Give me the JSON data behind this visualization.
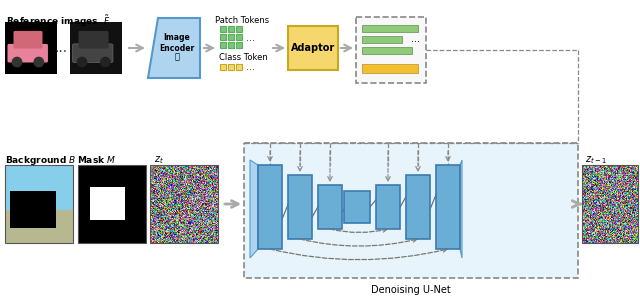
{
  "bg_color": "#ffffff",
  "ref_images_label": "Reference images  $\\tilde{F}$",
  "bg_label": "Background $B$",
  "mask_label": "Mask $M$",
  "zt_label": "$z_t$",
  "zt1_label": "$z_{t-1}$",
  "patch_tokens_label": "Patch Tokens",
  "class_token_label": "Class Token",
  "adaptor_label": "Adaptor",
  "image_encoder_label": "Image\nEncoder",
  "denoising_label": "Denoising U-Net",
  "encoder_color": "#aed4f0",
  "adaptor_color": "#f5d76e",
  "unet_block_color": "#6aaed6",
  "token_green": "#7dc47d",
  "token_yellow": "#f5d76e",
  "output_green": "#90c978",
  "output_yellow": "#f0c030",
  "arrow_color": "#aaaaaa",
  "dashed_color": "#888888"
}
